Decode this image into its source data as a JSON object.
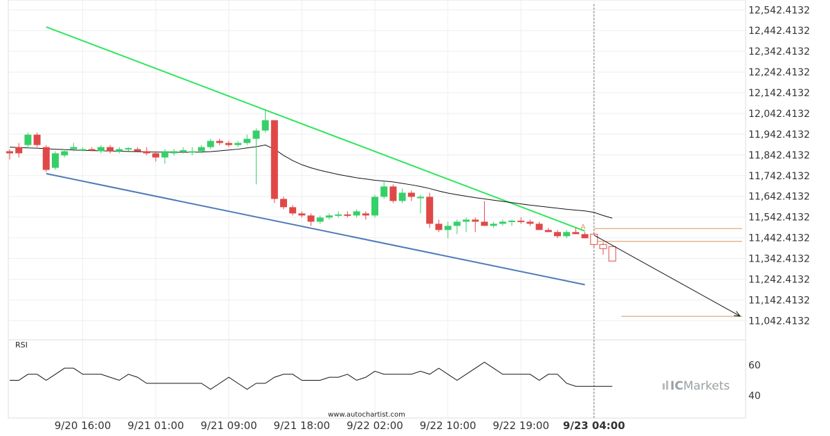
{
  "chart_data": {
    "type": "candlestick",
    "y_ticks": [
      "12,542.4132",
      "12,442.4132",
      "12,342.4132",
      "12,242.4132",
      "12,142.4132",
      "12,042.4132",
      "11,942.4132",
      "11,842.4132",
      "11,742.4132",
      "11,642.4132",
      "11,542.4132",
      "11,442.4132",
      "11,342.4132",
      "11,242.4132",
      "11,142.4132",
      "11,042.4132"
    ],
    "y_tick_values": [
      12542.4132,
      12442.4132,
      12342.4132,
      12242.4132,
      12142.4132,
      12042.4132,
      11942.4132,
      11842.4132,
      11742.4132,
      11642.4132,
      11542.4132,
      11442.4132,
      11342.4132,
      11242.4132,
      11142.4132,
      11042.4132
    ],
    "ylim": [
      10960,
      12570
    ],
    "x_ticks": [
      {
        "label": "9/20 16:00",
        "index": 8,
        "bold": false
      },
      {
        "label": "9/21 01:00",
        "index": 16,
        "bold": false
      },
      {
        "label": "9/21 09:00",
        "index": 24,
        "bold": false
      },
      {
        "label": "9/21 18:00",
        "index": 32,
        "bold": false
      },
      {
        "label": "9/22 02:00",
        "index": 40,
        "bold": false
      },
      {
        "label": "9/22 10:00",
        "index": 48,
        "bold": false
      },
      {
        "label": "9/22 19:00",
        "index": 56,
        "bold": false
      },
      {
        "label": "9/23 04:00",
        "index": 64,
        "bold": true
      }
    ],
    "candles": [
      [
        11860,
        11870,
        11820,
        11850
      ],
      [
        11880,
        11900,
        11830,
        11850
      ],
      [
        11890,
        11950,
        11880,
        11940
      ],
      [
        11940,
        11950,
        11880,
        11890
      ],
      [
        11880,
        11890,
        11760,
        11770
      ],
      [
        11780,
        11860,
        11770,
        11850
      ],
      [
        11840,
        11870,
        11830,
        11860
      ],
      [
        11870,
        11900,
        11860,
        11880
      ],
      [
        11870,
        11880,
        11860,
        11870
      ],
      [
        11870,
        11880,
        11860,
        11865
      ],
      [
        11860,
        11890,
        11850,
        11880
      ],
      [
        11880,
        11890,
        11850,
        11860
      ],
      [
        11860,
        11880,
        11850,
        11870
      ],
      [
        11870,
        11880,
        11860,
        11875
      ],
      [
        11870,
        11880,
        11860,
        11860
      ],
      [
        11860,
        11880,
        11840,
        11850
      ],
      [
        11850,
        11860,
        11810,
        11830
      ],
      [
        11830,
        11870,
        11800,
        11860
      ],
      [
        11850,
        11870,
        11840,
        11860
      ],
      [
        11860,
        11880,
        11850,
        11865
      ],
      [
        11860,
        11880,
        11840,
        11860
      ],
      [
        11860,
        11890,
        11850,
        11880
      ],
      [
        11880,
        11920,
        11870,
        11910
      ],
      [
        11910,
        11920,
        11890,
        11900
      ],
      [
        11900,
        11910,
        11880,
        11890
      ],
      [
        11890,
        11910,
        11880,
        11900
      ],
      [
        11900,
        11940,
        11890,
        11920
      ],
      [
        11920,
        11970,
        11700,
        11960
      ],
      [
        11960,
        12060,
        11950,
        12010
      ],
      [
        12010,
        12010,
        11610,
        11630
      ],
      [
        11630,
        11640,
        11580,
        11590
      ],
      [
        11590,
        11600,
        11550,
        11560
      ],
      [
        11560,
        11570,
        11540,
        11550
      ],
      [
        11550,
        11560,
        11500,
        11520
      ],
      [
        11520,
        11550,
        11510,
        11540
      ],
      [
        11540,
        11560,
        11530,
        11550
      ],
      [
        11550,
        11570,
        11540,
        11555
      ],
      [
        11555,
        11570,
        11540,
        11550
      ],
      [
        11550,
        11580,
        11540,
        11570
      ],
      [
        11560,
        11570,
        11530,
        11550
      ],
      [
        11550,
        11650,
        11540,
        11640
      ],
      [
        11640,
        11720,
        11630,
        11690
      ],
      [
        11690,
        11700,
        11610,
        11620
      ],
      [
        11620,
        11680,
        11610,
        11660
      ],
      [
        11660,
        11670,
        11620,
        11640
      ],
      [
        11640,
        11650,
        11560,
        11640
      ],
      [
        11640,
        11660,
        11490,
        11510
      ],
      [
        11510,
        11530,
        11470,
        11480
      ],
      [
        11480,
        11520,
        11440,
        11500
      ],
      [
        11500,
        11530,
        11460,
        11520
      ],
      [
        11520,
        11540,
        11470,
        11530
      ],
      [
        11530,
        11540,
        11470,
        11520
      ],
      [
        11520,
        11620,
        11500,
        11500
      ],
      [
        11500,
        11520,
        11490,
        11510
      ],
      [
        11510,
        11530,
        11500,
        11520
      ],
      [
        11520,
        11530,
        11500,
        11525
      ],
      [
        11525,
        11540,
        11510,
        11520
      ],
      [
        11520,
        11530,
        11500,
        11510
      ],
      [
        11510,
        11520,
        11480,
        11480
      ],
      [
        11480,
        11490,
        11470,
        11470
      ],
      [
        11470,
        11480,
        11440,
        11450
      ],
      [
        11450,
        11480,
        11440,
        11470
      ],
      [
        11470,
        11490,
        11460,
        11460
      ],
      [
        11460,
        11470,
        11440,
        11440
      ],
      [
        11460,
        11470,
        11400,
        11410
      ],
      [
        11410,
        11420,
        11360,
        11390
      ],
      [
        11400,
        11400,
        11330,
        11330
      ]
    ],
    "ma_values": [
      11880,
      11878,
      11876,
      11875,
      11872,
      11870,
      11868,
      11866,
      11864,
      11863,
      11862,
      11861,
      11860,
      11859,
      11858,
      11857,
      11856,
      11856,
      11855,
      11855,
      11855,
      11856,
      11858,
      11862,
      11866,
      11870,
      11876,
      11882,
      11890,
      11870,
      11840,
      11815,
      11795,
      11780,
      11768,
      11758,
      11748,
      11740,
      11732,
      11726,
      11720,
      11716,
      11712,
      11705,
      11698,
      11690,
      11680,
      11668,
      11658,
      11650,
      11643,
      11636,
      11630,
      11624,
      11618,
      11612,
      11606,
      11600,
      11595,
      11590,
      11585,
      11580,
      11576,
      11572,
      11565,
      11550,
      11537
    ],
    "upper_line": {
      "from": [
        4,
        12460
      ],
      "to": [
        63,
        11475
      ]
    },
    "lower_line": {
      "from": [
        4,
        11752
      ],
      "to": [
        63,
        11216
      ]
    },
    "forecast_line": {
      "from": [
        64,
        11455
      ],
      "to": [
        80,
        11064
      ]
    },
    "levels": [
      11487,
      11425,
      11063
    ],
    "point_label": "A",
    "point_label_index": 63,
    "divider_index": 64,
    "rsi_label": "RSI",
    "rsi_ticks": [
      "60",
      "40"
    ],
    "rsi_tick_values": [
      60,
      40
    ],
    "rsi_ylim": [
      25,
      75
    ],
    "rsi_values": [
      50,
      50,
      54,
      54,
      50,
      54,
      58,
      58,
      54,
      54,
      54,
      52,
      50,
      54,
      52,
      48,
      48,
      48,
      48,
      48,
      48,
      48,
      44,
      48,
      52,
      48,
      44,
      48,
      48,
      52,
      54,
      54,
      50,
      50,
      50,
      52,
      52,
      54,
      50,
      52,
      56,
      54,
      54,
      54,
      54,
      56,
      54,
      58,
      54,
      50,
      54,
      58,
      62,
      58,
      54,
      54,
      54,
      54,
      50,
      54,
      54,
      48,
      46,
      46,
      46,
      46,
      46
    ],
    "colors": {
      "up": "#35d068",
      "down": "#e04848",
      "upper_line": "#2ee65c",
      "lower_line": "#4f7ab8",
      "ma": "#111111",
      "levels": "#d7955a",
      "forecast": "#111111",
      "rsi": "#111111",
      "divider": "#777777"
    }
  },
  "watermark": "www.autochartist.com",
  "brand": {
    "prefix": "IC",
    "suffix": "Markets"
  }
}
